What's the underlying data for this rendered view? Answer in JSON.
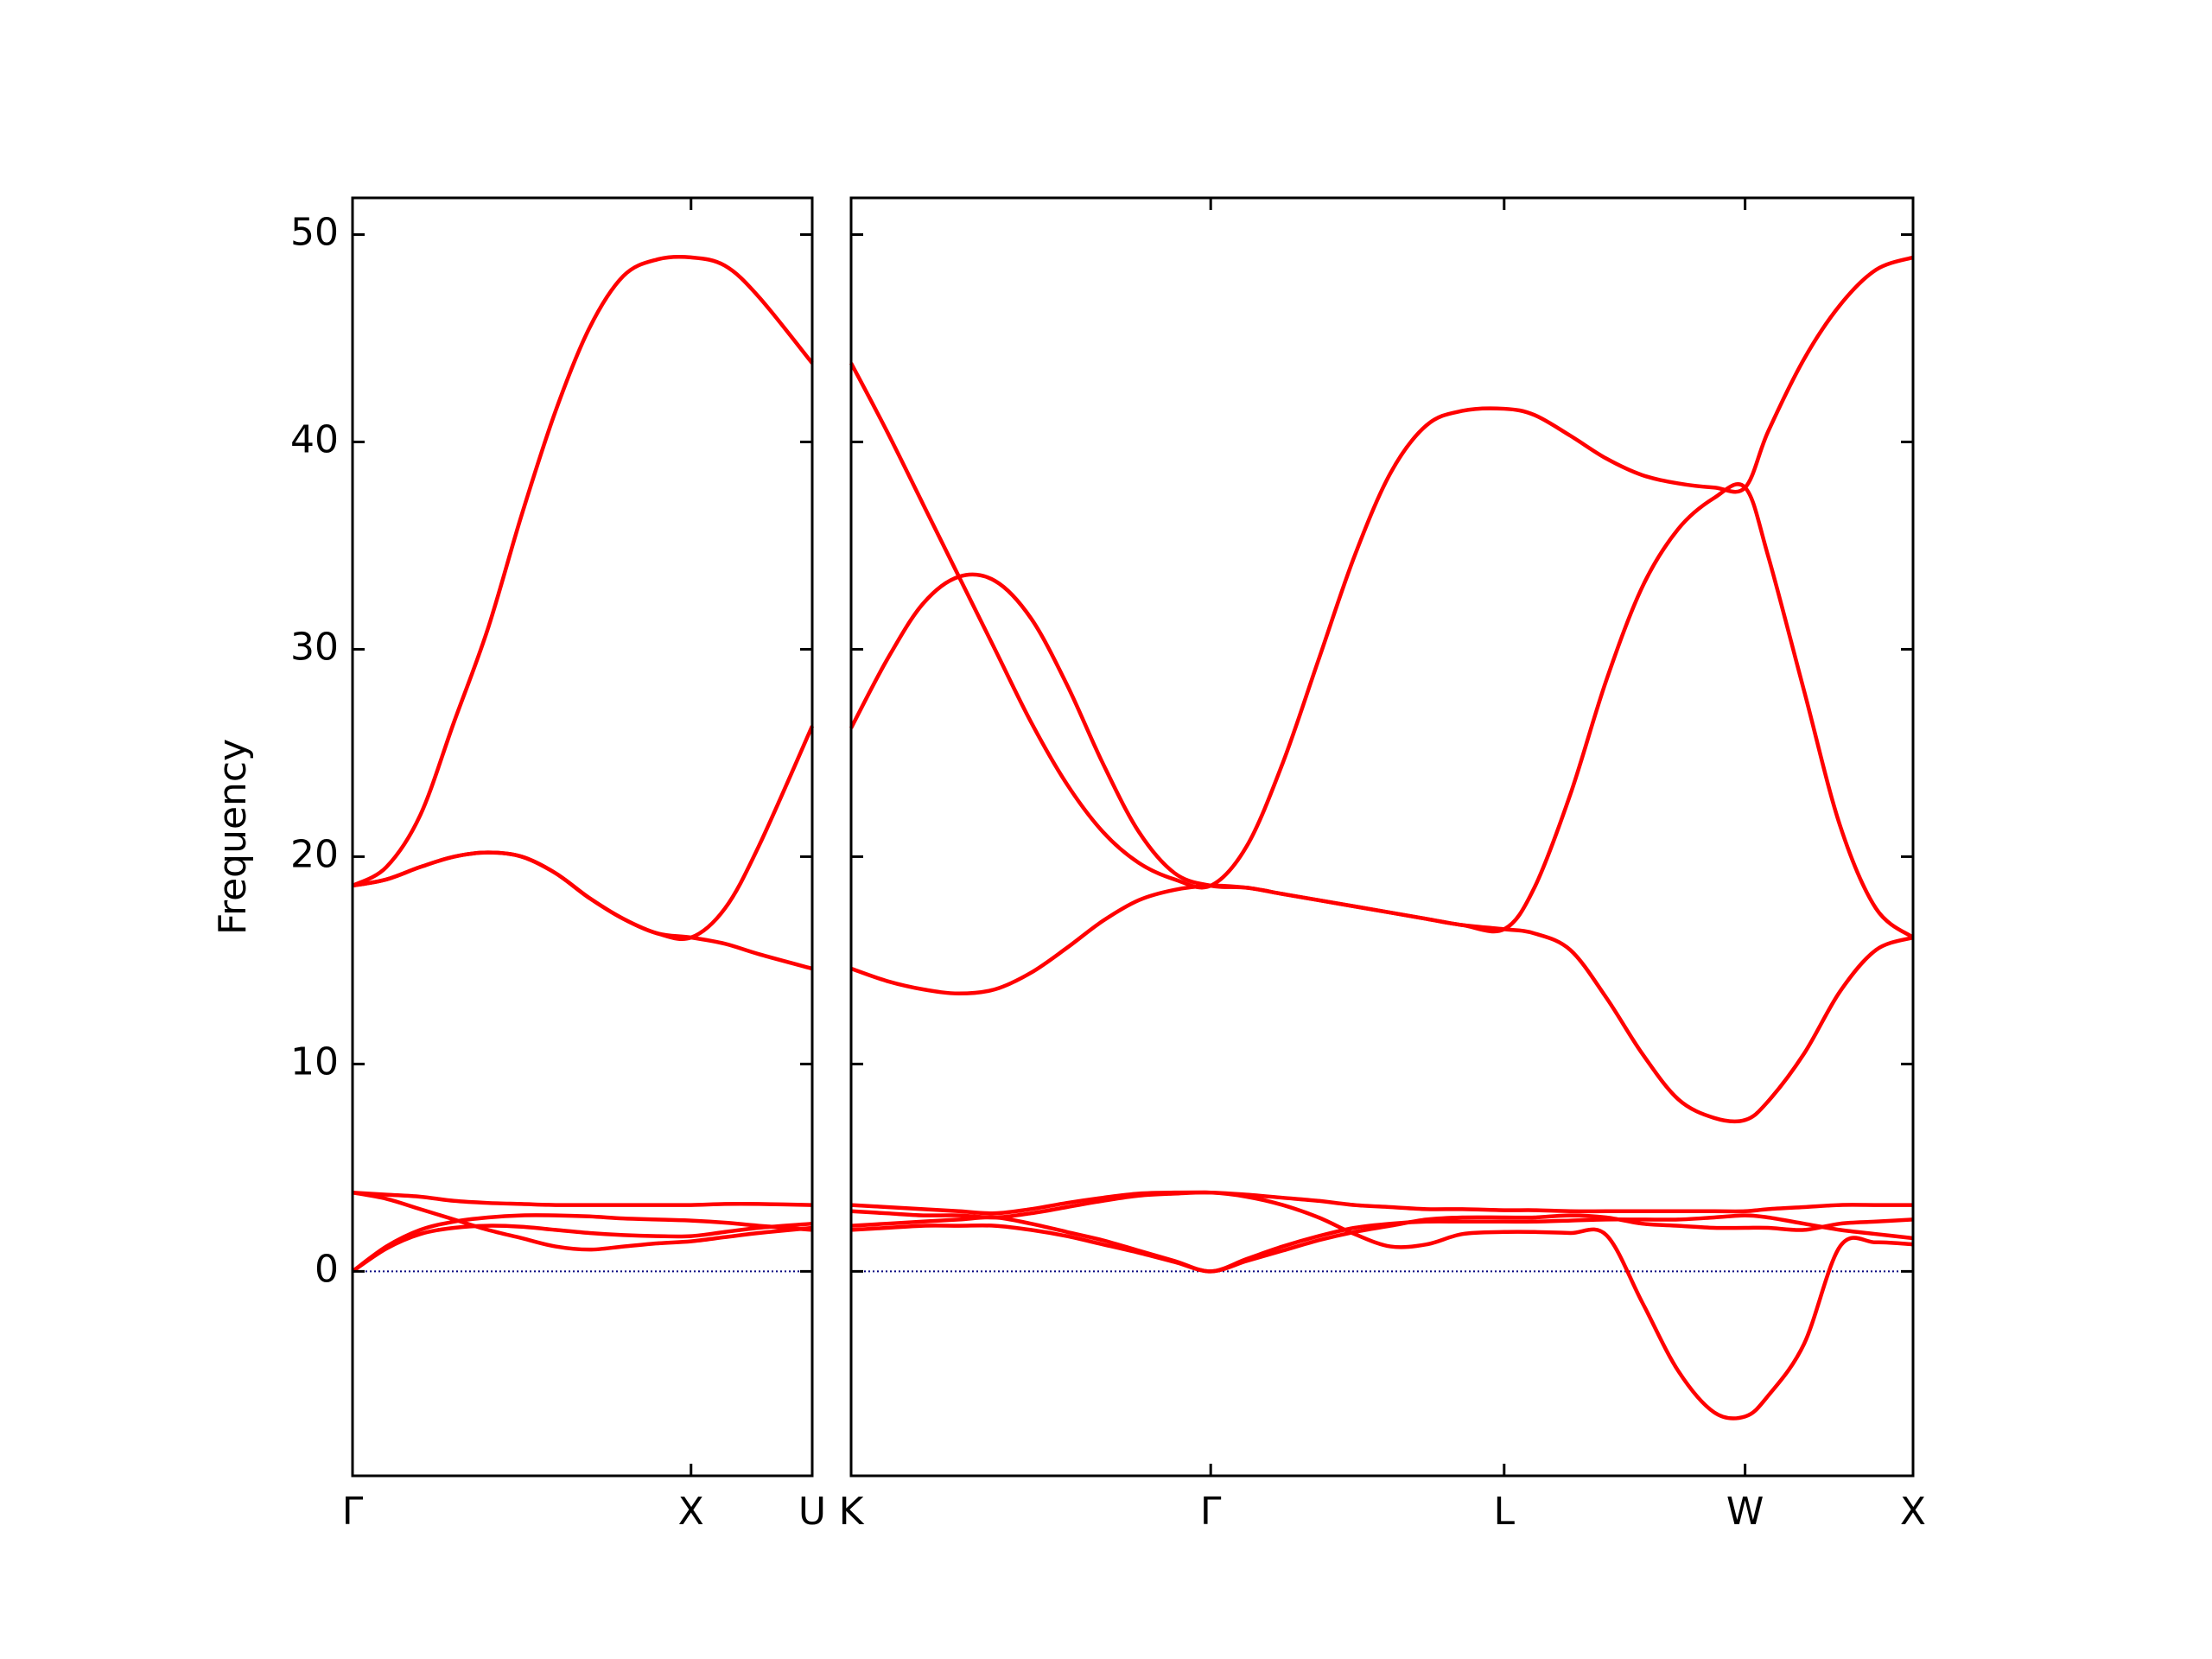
{
  "chart_data": [
    {
      "type": "line",
      "ylabel": "Frequency",
      "color": "#ff0000",
      "ytick_labels": true,
      "x": [
        0,
        0.1,
        0.2,
        0.3,
        0.4,
        0.5,
        0.6,
        0.7,
        0.8,
        0.9,
        1.0,
        1.1,
        1.2,
        1.358
      ],
      "series": [
        {
          "values": [
            18.6,
            19.5,
            22,
            26.5,
            31,
            36.5,
            41.5,
            45.5,
            48,
            48.8,
            48.9,
            48.5,
            47,
            43.8
          ]
        },
        {
          "values": [
            18.6,
            18.9,
            19.5,
            20,
            20.2,
            20,
            19.2,
            18,
            17,
            16.3,
            16.1,
            17.5,
            20.5,
            26.3
          ]
        },
        {
          "values": [
            18.6,
            18.9,
            19.5,
            20,
            20.2,
            20,
            19.2,
            18,
            17,
            16.3,
            16.1,
            15.8,
            15.3,
            14.6
          ]
        },
        {
          "values": [
            3.8,
            3.7,
            3.6,
            3.4,
            3.3,
            3.25,
            3.2,
            3.2,
            3.2,
            3.2,
            3.2,
            3.25,
            3.25,
            3.2
          ]
        },
        {
          "values": [
            3.8,
            3.5,
            3.0,
            2.5,
            2.0,
            1.6,
            1.2,
            1.05,
            1.2,
            1.35,
            1.45,
            1.65,
            1.85,
            2.1
          ]
        },
        {
          "values": [
            0,
            1.2,
            2.0,
            2.4,
            2.6,
            2.7,
            2.7,
            2.65,
            2.55,
            2.5,
            2.45,
            2.35,
            2.2,
            2.0
          ]
        },
        {
          "values": [
            0,
            1.1,
            1.8,
            2.1,
            2.2,
            2.15,
            2.0,
            1.85,
            1.75,
            1.7,
            1.7,
            1.9,
            2.1,
            2.3
          ]
        }
      ],
      "xlim": [
        0,
        1.358
      ],
      "xticks": [
        {
          "value": 0,
          "label": "Γ"
        },
        {
          "value": 1,
          "label": "X"
        },
        {
          "value": 1.358,
          "label": "U"
        }
      ],
      "ylim": [
        -9.86,
        51.77
      ],
      "yticks": [
        0,
        10,
        20,
        30,
        40,
        50
      ],
      "hline": {
        "y": 0,
        "color": "#000080"
      }
    },
    {
      "type": "line",
      "color": "#ff0000",
      "ytick_labels": false,
      "x": [
        0,
        0.1,
        0.2,
        0.3,
        0.4,
        0.5,
        0.6,
        0.7,
        0.8,
        0.9,
        1.0,
        1.1,
        1.2,
        1.3,
        1.4,
        1.5,
        1.6,
        1.7,
        1.816,
        1.9,
        2.0,
        2.1,
        2.2,
        2.3,
        2.4,
        2.486,
        2.55,
        2.65,
        2.75,
        2.85,
        2.953
      ],
      "series": [
        {
          "values": [
            43.8,
            40.5,
            37,
            33.5,
            30,
            26.5,
            23.5,
            21.2,
            19.7,
            18.9,
            18.6,
            20.5,
            24.5,
            29.5,
            34.5,
            38.5,
            40.8,
            41.5,
            41.6,
            41.3,
            40.3,
            39.2,
            38.4,
            38.0,
            37.8,
            37.8,
            40.5,
            44,
            46.6,
            48.3,
            48.9
          ]
        },
        {
          "values": [
            26.2,
            29.5,
            32.2,
            33.5,
            33.3,
            31.5,
            28.3,
            24.5,
            21.2,
            19.2,
            18.6,
            18.5,
            18.2,
            17.9,
            17.6,
            17.3,
            17.0,
            16.7,
            16.5,
            18.5,
            23,
            28.5,
            33,
            35.8,
            37.3,
            37.8,
            34.5,
            28,
            21.5,
            17.5,
            16.1
          ]
        },
        {
          "values": [
            14.6,
            14.0,
            13.6,
            13.4,
            13.6,
            14.4,
            15.6,
            16.9,
            17.9,
            18.4,
            18.6,
            18.5,
            18.2,
            17.9,
            17.6,
            17.3,
            17.0,
            16.7,
            16.5,
            16.3,
            15.5,
            13.2,
            10.5,
            8.3,
            7.4,
            7.3,
            8.2,
            10.5,
            13.5,
            15.5,
            16.1
          ]
        },
        {
          "values": [
            3.2,
            3.1,
            3.0,
            2.9,
            2.8,
            3.0,
            3.3,
            3.55,
            3.75,
            3.8,
            3.8,
            3.7,
            3.55,
            3.4,
            3.2,
            3.1,
            3.0,
            3.0,
            2.95,
            2.95,
            2.9,
            2.9,
            2.9,
            2.9,
            2.9,
            2.9,
            3.0,
            3.1,
            3.2,
            3.2,
            3.2
          ]
        },
        {
          "values": [
            2.9,
            2.8,
            2.7,
            2.7,
            2.6,
            2.8,
            3.1,
            3.4,
            3.65,
            3.75,
            3.8,
            3.6,
            3.2,
            2.6,
            1.8,
            1.2,
            1.3,
            1.8,
            1.9,
            1.9,
            1.85,
            1.75,
            -1.5,
            -4.8,
            -6.8,
            -7.0,
            -6.0,
            -3.5,
            1.2,
            1.4,
            1.3
          ]
        },
        {
          "values": [
            2.2,
            2.3,
            2.4,
            2.5,
            2.6,
            2.3,
            1.9,
            1.5,
            1.0,
            0.5,
            0,
            0.6,
            1.2,
            1.7,
            2.1,
            2.3,
            2.4,
            2.4,
            2.4,
            2.4,
            2.45,
            2.5,
            2.5,
            2.5,
            2.6,
            2.7,
            2.6,
            2.3,
            2.0,
            1.8,
            1.6
          ]
        },
        {
          "values": [
            2.0,
            2.1,
            2.2,
            2.2,
            2.2,
            2.0,
            1.7,
            1.3,
            0.9,
            0.45,
            0,
            0.5,
            1.0,
            1.5,
            1.9,
            2.2,
            2.5,
            2.6,
            2.6,
            2.6,
            2.7,
            2.6,
            2.3,
            2.2,
            2.1,
            2.1,
            2.1,
            2.0,
            2.3,
            2.4,
            2.5
          ]
        }
      ],
      "xlim": [
        0,
        2.953
      ],
      "xticks": [
        {
          "value": 0,
          "label": "K"
        },
        {
          "value": 1,
          "label": "Γ"
        },
        {
          "value": 1.816,
          "label": "L"
        },
        {
          "value": 2.486,
          "label": "W"
        },
        {
          "value": 2.953,
          "label": "X"
        }
      ],
      "ylim": [
        -9.86,
        51.77
      ],
      "yticks": [
        0,
        10,
        20,
        30,
        40,
        50
      ],
      "hline": {
        "y": 0,
        "color": "#000080"
      }
    }
  ]
}
